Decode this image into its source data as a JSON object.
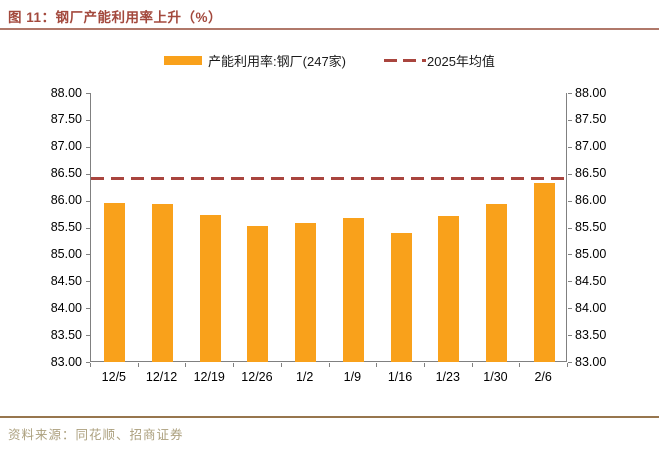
{
  "header": {
    "title": "图 11：钢厂产能利用率上升（%）"
  },
  "legend": {
    "bar_series_label": "产能利用率:钢厂(247家)",
    "mean_line_label": "2025年均值"
  },
  "footer": {
    "source": "资料来源：同花顺、招商证券"
  },
  "colors": {
    "bar": "#F9A11B",
    "mean_line": "#A9453E",
    "title_text": "#A3493D",
    "title_rule": "#B0786A",
    "footer_rule": "#97764E",
    "source_text": "#ACA07E",
    "axis": "#808080"
  },
  "chart_data": {
    "type": "bar",
    "title": "钢厂产能利用率上升（%）",
    "categories": [
      "12/5",
      "12/12",
      "12/19",
      "12/26",
      "1/2",
      "1/9",
      "1/16",
      "1/23",
      "1/30",
      "2/6"
    ],
    "series": [
      {
        "name": "产能利用率:钢厂(247家)",
        "type": "bar",
        "values": [
          85.96,
          85.94,
          85.74,
          85.53,
          85.58,
          85.68,
          85.39,
          85.72,
          85.93,
          86.33
        ]
      },
      {
        "name": "2025年均值",
        "type": "horizontal-dashed-line",
        "value": 86.41
      }
    ],
    "xlabel": "",
    "ylabel": "",
    "ylim": [
      83.0,
      88.0
    ],
    "yticks": [
      "88.00",
      "87.50",
      "87.00",
      "86.50",
      "86.00",
      "85.50",
      "85.00",
      "84.50",
      "84.00",
      "83.50",
      "83.00"
    ],
    "dual_y_axis": true,
    "grid": false,
    "legend_position": "top"
  }
}
